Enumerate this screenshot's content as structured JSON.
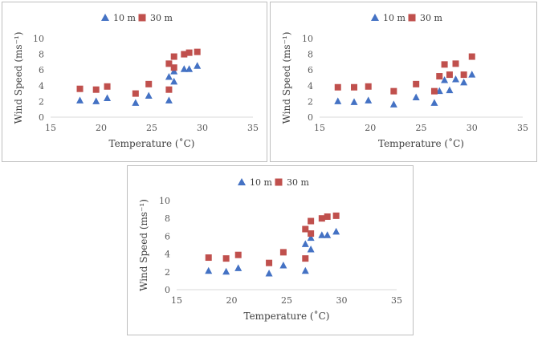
{
  "chart_data": [
    {
      "type": "scatter",
      "title": "",
      "xlabel": "Temperature (˚C)",
      "ylabel": "Wind Speed (ms⁻¹)",
      "xlim": [
        15,
        35
      ],
      "ylim": [
        0,
        10
      ],
      "xticks": [
        15,
        20,
        25,
        30,
        35
      ],
      "yticks": [
        0,
        2,
        4,
        6,
        8,
        10
      ],
      "legend": "top",
      "series": [
        {
          "name": "10 m",
          "marker": "triangle",
          "color": "#4472c4",
          "points": [
            [
              17.9,
              2.1
            ],
            [
              19.5,
              2.0
            ],
            [
              20.6,
              2.4
            ],
            [
              23.4,
              1.8
            ],
            [
              24.7,
              2.7
            ],
            [
              26.7,
              2.1
            ],
            [
              26.7,
              5.1
            ],
            [
              27.2,
              5.8
            ],
            [
              27.2,
              4.5
            ],
            [
              28.2,
              6.1
            ],
            [
              28.7,
              6.1
            ],
            [
              29.5,
              6.5
            ]
          ]
        },
        {
          "name": "30 m",
          "marker": "square",
          "color": "#c0504d",
          "points": [
            [
              17.9,
              3.6
            ],
            [
              19.5,
              3.5
            ],
            [
              20.6,
              3.9
            ],
            [
              23.4,
              3.0
            ],
            [
              24.7,
              4.2
            ],
            [
              26.7,
              3.5
            ],
            [
              26.7,
              6.8
            ],
            [
              27.2,
              7.7
            ],
            [
              27.2,
              6.3
            ],
            [
              28.2,
              8.0
            ],
            [
              28.7,
              8.2
            ],
            [
              29.5,
              8.3
            ]
          ]
        }
      ]
    },
    {
      "type": "scatter",
      "title": "",
      "xlabel": "Temperature (˚C)",
      "ylabel": "Wind Speed (ms⁻¹)",
      "xlim": [
        15,
        35
      ],
      "ylim": [
        0,
        10
      ],
      "xticks": [
        15,
        20,
        25,
        30,
        35
      ],
      "yticks": [
        0,
        2,
        4,
        6,
        8,
        10
      ],
      "legend": "top",
      "series": [
        {
          "name": "10 m",
          "marker": "triangle",
          "color": "#4472c4",
          "points": [
            [
              16.8,
              2.0
            ],
            [
              18.4,
              1.9
            ],
            [
              19.8,
              2.1
            ],
            [
              22.3,
              1.6
            ],
            [
              24.5,
              2.5
            ],
            [
              26.3,
              1.8
            ],
            [
              26.8,
              3.3
            ],
            [
              27.3,
              4.7
            ],
            [
              27.8,
              3.4
            ],
            [
              28.4,
              4.8
            ],
            [
              29.2,
              4.4
            ],
            [
              30.0,
              5.4
            ]
          ]
        },
        {
          "name": "30 m",
          "marker": "square",
          "color": "#c0504d",
          "points": [
            [
              16.8,
              3.8
            ],
            [
              18.4,
              3.8
            ],
            [
              19.8,
              3.9
            ],
            [
              22.3,
              3.3
            ],
            [
              24.5,
              4.2
            ],
            [
              26.3,
              3.3
            ],
            [
              26.8,
              5.2
            ],
            [
              27.3,
              6.7
            ],
            [
              27.8,
              5.4
            ],
            [
              28.4,
              6.8
            ],
            [
              29.2,
              5.4
            ],
            [
              30.0,
              7.7
            ]
          ]
        }
      ]
    },
    {
      "type": "scatter",
      "title": "",
      "xlabel": "Temperature (˚C)",
      "ylabel": "Wind Speed (ms⁻¹)",
      "xlim": [
        15,
        35
      ],
      "ylim": [
        0,
        10
      ],
      "xticks": [
        15,
        20,
        25,
        30,
        35
      ],
      "yticks": [
        0,
        2,
        4,
        6,
        8,
        10
      ],
      "legend": "top",
      "series": [
        {
          "name": "10 m",
          "marker": "triangle",
          "color": "#4472c4",
          "points": [
            [
              17.9,
              2.1
            ],
            [
              19.5,
              2.0
            ],
            [
              20.6,
              2.4
            ],
            [
              23.4,
              1.8
            ],
            [
              24.7,
              2.7
            ],
            [
              26.7,
              2.1
            ],
            [
              26.7,
              5.1
            ],
            [
              27.2,
              5.8
            ],
            [
              27.2,
              4.5
            ],
            [
              28.2,
              6.1
            ],
            [
              28.7,
              6.1
            ],
            [
              29.5,
              6.5
            ]
          ]
        },
        {
          "name": "30 m",
          "marker": "square",
          "color": "#c0504d",
          "points": [
            [
              17.9,
              3.6
            ],
            [
              19.5,
              3.5
            ],
            [
              20.6,
              3.9
            ],
            [
              23.4,
              3.0
            ],
            [
              24.7,
              4.2
            ],
            [
              26.7,
              3.5
            ],
            [
              26.7,
              6.8
            ],
            [
              27.2,
              7.7
            ],
            [
              27.2,
              6.3
            ],
            [
              28.2,
              8.0
            ],
            [
              28.7,
              8.2
            ],
            [
              29.5,
              8.3
            ]
          ]
        }
      ]
    }
  ]
}
